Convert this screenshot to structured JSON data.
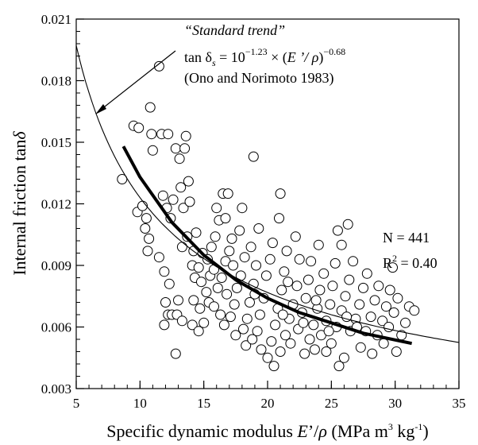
{
  "chart_data": {
    "type": "scatter",
    "xlabel": {
      "prefix": "Specific dynamic modulus ",
      "var": "E",
      "mid": "’/",
      "rho": "ρ",
      "unit": " (MPa m",
      "exp1": "3",
      "unit2": " kg",
      "exp2": "-1",
      "close": ")"
    },
    "ylabel": {
      "text": "Internal friction tan",
      "var": "δ"
    },
    "xlim": [
      5,
      35
    ],
    "ylim": [
      0.003,
      0.021
    ],
    "xticks": [
      "5",
      "10",
      "15",
      "20",
      "25",
      "30",
      "35"
    ],
    "yticks": [
      "0.003",
      "0.006",
      "0.009",
      "0.012",
      "0.015",
      "0.018",
      "0.021"
    ],
    "x_minor_step": 1,
    "y_minor_step": 0.0006,
    "standard_trend": {
      "label": "“Standard trend”",
      "formula": {
        "lhs": "tan δ",
        "lhs_sub": "s",
        "eq": " = 10",
        "coef_exp": "−1.23",
        "times": " × (",
        "var": "E ’/ ρ",
        "close": ")",
        "power": "−0.68"
      },
      "citation": "(Ono and Norimoto 1983)",
      "coef_log10": -1.23,
      "exponent": -0.68,
      "x_range": [
        5,
        35
      ]
    },
    "fit": {
      "x_range": [
        8.7,
        31.3
      ],
      "points": [
        [
          8.7,
          0.0148
        ],
        [
          10,
          0.0133
        ],
        [
          12.5,
          0.0111
        ],
        [
          15,
          0.0095
        ],
        [
          17.5,
          0.0083
        ],
        [
          20,
          0.0074
        ],
        [
          22.5,
          0.0067
        ],
        [
          25,
          0.0062
        ],
        [
          27.5,
          0.0057
        ],
        [
          31.3,
          0.0052
        ]
      ]
    },
    "stats": {
      "n": "N = 441",
      "r2_base": "R",
      "r2_exp": "2",
      "r2_val": " = 0.40"
    },
    "points": [
      [
        8.6,
        0.0132
      ],
      [
        9.5,
        0.0158
      ],
      [
        9.9,
        0.0157
      ],
      [
        9.8,
        0.0116
      ],
      [
        10.2,
        0.0119
      ],
      [
        10.5,
        0.0113
      ],
      [
        10.4,
        0.0108
      ],
      [
        10.7,
        0.0103
      ],
      [
        10.6,
        0.0097
      ],
      [
        10.8,
        0.0167
      ],
      [
        10.9,
        0.0154
      ],
      [
        11.0,
        0.0146
      ],
      [
        11.5,
        0.0187
      ],
      [
        11.7,
        0.0154
      ],
      [
        12.2,
        0.0154
      ],
      [
        11.8,
        0.0124
      ],
      [
        12.1,
        0.0118
      ],
      [
        12.6,
        0.0122
      ],
      [
        12.4,
        0.0113
      ],
      [
        11.5,
        0.0094
      ],
      [
        11.9,
        0.0087
      ],
      [
        12.3,
        0.0081
      ],
      [
        12.0,
        0.0072
      ],
      [
        12.2,
        0.0066
      ],
      [
        11.9,
        0.0061
      ],
      [
        12.5,
        0.0066
      ],
      [
        13.0,
        0.0073
      ],
      [
        12.9,
        0.0066
      ],
      [
        12.8,
        0.0047
      ],
      [
        13.3,
        0.0063
      ],
      [
        12.8,
        0.0147
      ],
      [
        13.1,
        0.0142
      ],
      [
        13.6,
        0.0153
      ],
      [
        13.5,
        0.0147
      ],
      [
        13.2,
        0.0128
      ],
      [
        13.8,
        0.0131
      ],
      [
        13.4,
        0.0118
      ],
      [
        13.9,
        0.0121
      ],
      [
        13.7,
        0.0104
      ],
      [
        13.3,
        0.0099
      ],
      [
        14.2,
        0.0097
      ],
      [
        14.4,
        0.0106
      ],
      [
        14.1,
        0.009
      ],
      [
        14.6,
        0.0089
      ],
      [
        14.9,
        0.0096
      ],
      [
        14.3,
        0.0084
      ],
      [
        14.8,
        0.0082
      ],
      [
        14.2,
        0.0073
      ],
      [
        14.7,
        0.0069
      ],
      [
        14.1,
        0.0061
      ],
      [
        14.6,
        0.0058
      ],
      [
        15.0,
        0.0062
      ],
      [
        15.2,
        0.0077
      ],
      [
        15.5,
        0.0085
      ],
      [
        15.3,
        0.0093
      ],
      [
        15.8,
        0.0088
      ],
      [
        15.6,
        0.0099
      ],
      [
        15.9,
        0.0104
      ],
      [
        16.2,
        0.0112
      ],
      [
        16.0,
        0.0118
      ],
      [
        16.5,
        0.0125
      ],
      [
        16.7,
        0.0113
      ],
      [
        16.9,
        0.0125
      ],
      [
        15.4,
        0.0072
      ],
      [
        15.8,
        0.007
      ],
      [
        16.1,
        0.0079
      ],
      [
        16.4,
        0.0084
      ],
      [
        16.7,
        0.0092
      ],
      [
        17.0,
        0.0097
      ],
      [
        17.3,
        0.009
      ],
      [
        16.3,
        0.0066
      ],
      [
        16.6,
        0.0061
      ],
      [
        17.1,
        0.0065
      ],
      [
        17.4,
        0.0071
      ],
      [
        17.6,
        0.0079
      ],
      [
        17.9,
        0.0085
      ],
      [
        18.2,
        0.0094
      ],
      [
        17.8,
        0.0107
      ],
      [
        18.0,
        0.0118
      ],
      [
        17.5,
        0.0056
      ],
      [
        18.1,
        0.0059
      ],
      [
        18.4,
        0.0064
      ],
      [
        18.6,
        0.0072
      ],
      [
        18.9,
        0.0081
      ],
      [
        19.1,
        0.009
      ],
      [
        18.7,
        0.0099
      ],
      [
        18.9,
        0.0143
      ],
      [
        18.3,
        0.0051
      ],
      [
        18.8,
        0.0054
      ],
      [
        19.2,
        0.0058
      ],
      [
        19.4,
        0.0066
      ],
      [
        19.7,
        0.0074
      ],
      [
        19.9,
        0.0085
      ],
      [
        20.2,
        0.0093
      ],
      [
        20.4,
        0.0101
      ],
      [
        19.5,
        0.0049
      ],
      [
        20.0,
        0.0045
      ],
      [
        20.3,
        0.0053
      ],
      [
        20.6,
        0.0061
      ],
      [
        20.8,
        0.0069
      ],
      [
        21.1,
        0.0078
      ],
      [
        21.3,
        0.0087
      ],
      [
        21.0,
        0.0125
      ],
      [
        21.5,
        0.0097
      ],
      [
        20.5,
        0.0041
      ],
      [
        21.0,
        0.0048
      ],
      [
        21.4,
        0.0056
      ],
      [
        21.7,
        0.0064
      ],
      [
        22.0,
        0.0071
      ],
      [
        22.3,
        0.008
      ],
      [
        22.5,
        0.0093
      ],
      [
        22.2,
        0.0104
      ],
      [
        21.8,
        0.0052
      ],
      [
        22.4,
        0.0059
      ],
      [
        22.7,
        0.0067
      ],
      [
        23.0,
        0.0074
      ],
      [
        23.2,
        0.0083
      ],
      [
        23.4,
        0.0092
      ],
      [
        22.9,
        0.0047
      ],
      [
        23.3,
        0.0054
      ],
      [
        23.6,
        0.0061
      ],
      [
        23.9,
        0.0069
      ],
      [
        24.1,
        0.0078
      ],
      [
        24.4,
        0.0086
      ],
      [
        24.0,
        0.01
      ],
      [
        23.7,
        0.0049
      ],
      [
        24.2,
        0.0056
      ],
      [
        24.6,
        0.0063
      ],
      [
        24.9,
        0.0071
      ],
      [
        25.1,
        0.008
      ],
      [
        25.3,
        0.0091
      ],
      [
        25.5,
        0.0107
      ],
      [
        25.8,
        0.01
      ],
      [
        26.3,
        0.011
      ],
      [
        24.6,
        0.0048
      ],
      [
        25.0,
        0.0052
      ],
      [
        25.4,
        0.006
      ],
      [
        25.8,
        0.0068
      ],
      [
        26.1,
        0.0075
      ],
      [
        26.4,
        0.0083
      ],
      [
        26.7,
        0.0092
      ],
      [
        25.6,
        0.0041
      ],
      [
        26.0,
        0.0045
      ],
      [
        26.5,
        0.0058
      ],
      [
        26.9,
        0.0064
      ],
      [
        27.2,
        0.0071
      ],
      [
        27.5,
        0.0079
      ],
      [
        27.8,
        0.0086
      ],
      [
        27.3,
        0.005
      ],
      [
        27.7,
        0.0058
      ],
      [
        28.1,
        0.0065
      ],
      [
        28.4,
        0.0073
      ],
      [
        28.7,
        0.008
      ],
      [
        28.2,
        0.0047
      ],
      [
        28.6,
        0.0056
      ],
      [
        29.0,
        0.0063
      ],
      [
        29.3,
        0.007
      ],
      [
        29.6,
        0.0078
      ],
      [
        29.8,
        0.0089
      ],
      [
        29.1,
        0.0052
      ],
      [
        29.5,
        0.006
      ],
      [
        29.9,
        0.0067
      ],
      [
        30.2,
        0.0074
      ],
      [
        30.5,
        0.0056
      ],
      [
        30.8,
        0.0062
      ],
      [
        31.1,
        0.007
      ],
      [
        31.5,
        0.0068
      ],
      [
        30.1,
        0.0048
      ],
      [
        19.3,
        0.0108
      ],
      [
        20.9,
        0.0113
      ],
      [
        17.2,
        0.0103
      ],
      [
        16.8,
        0.0076
      ],
      [
        19.0,
        0.0076
      ],
      [
        21.6,
        0.0082
      ],
      [
        22.8,
        0.0062
      ],
      [
        23.8,
        0.0073
      ],
      [
        24.8,
        0.0058
      ],
      [
        26.2,
        0.0065
      ],
      [
        27.0,
        0.006
      ],
      [
        21.2,
        0.0066
      ]
    ]
  }
}
